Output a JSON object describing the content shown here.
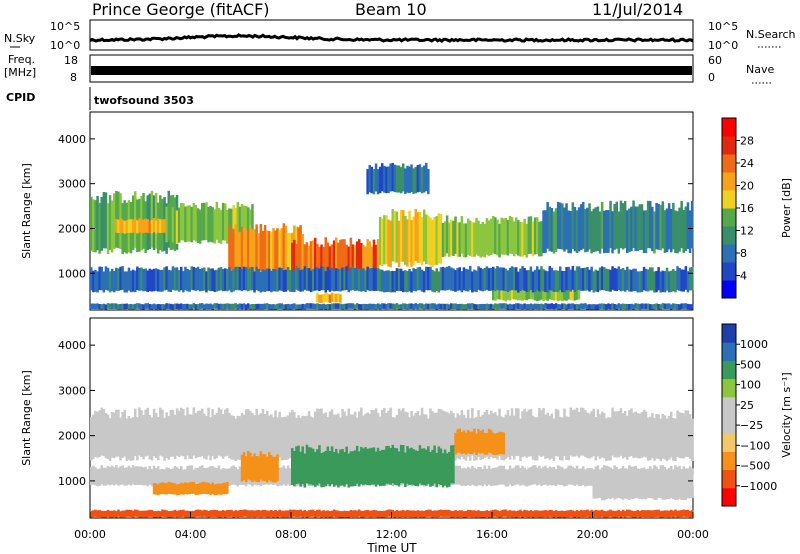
{
  "header": {
    "title": "Prince George (fitACF)",
    "beam": "Beam 10",
    "date": "11/Jul/2014"
  },
  "noise_panel": {
    "left_label": "N.Sky",
    "right_label": "N.Search",
    "left_ticks": [
      "10^5",
      "10^0"
    ],
    "right_ticks": [
      "10^5",
      "10^0"
    ]
  },
  "freq_panel": {
    "label_line1": "Freq.",
    "label_line2": "[MHz]",
    "right_label": "Nave",
    "left_ticks": [
      "18",
      "8"
    ],
    "right_ticks": [
      "60",
      "0"
    ]
  },
  "cpid_panel": {
    "label": "CPID",
    "value": "twofsound 3503"
  },
  "x_axis": {
    "label": "Time UT",
    "ticks": [
      "00:00",
      "04:00",
      "08:00",
      "12:00",
      "16:00",
      "20:00",
      "00:00"
    ]
  },
  "colors": {
    "power": [
      "#0000ff",
      "#1f47c6",
      "#2c6fb7",
      "#3a8f6a",
      "#55a84c",
      "#8cc63f",
      "#f0d020",
      "#f7a21b",
      "#f06b15",
      "#e02a10",
      "#ff0000"
    ],
    "velocity": [
      "#ff0000",
      "#f05010",
      "#f59018",
      "#f3c86b",
      "#c8c8c8",
      "#8cc63f",
      "#3a9a5a",
      "#2c6fb7",
      "#1d3fa8"
    ]
  },
  "chart_data": [
    {
      "type": "heatmap",
      "name": "power",
      "title": "",
      "xlabel": "",
      "ylabel": "Slant Range [km]",
      "y_ticks": [
        "1000",
        "2000",
        "3000",
        "4000"
      ],
      "ylim": [
        180,
        4600
      ],
      "xlim": [
        0,
        24
      ],
      "colorbar_label": "Power [dB]",
      "colorbar_ticks": [
        "4",
        "8",
        "12",
        "16",
        "20",
        "24",
        "28"
      ],
      "colorbar_range": [
        0,
        30
      ],
      "regions": [
        {
          "x0": 0.0,
          "x1": 24.0,
          "y0": 200,
          "y1": 320,
          "level": 6
        },
        {
          "x0": 0.0,
          "x1": 3.5,
          "y0": 1500,
          "y1": 2700,
          "level": 12
        },
        {
          "x0": 1.0,
          "x1": 3.0,
          "y0": 1900,
          "y1": 2200,
          "level": 20
        },
        {
          "x0": 3.0,
          "x1": 6.5,
          "y0": 1700,
          "y1": 2500,
          "level": 14
        },
        {
          "x0": 5.5,
          "x1": 8.5,
          "y0": 1000,
          "y1": 2000,
          "level": 22
        },
        {
          "x0": 8.0,
          "x1": 11.5,
          "y0": 800,
          "y1": 1700,
          "level": 24
        },
        {
          "x0": 9.0,
          "x1": 10.0,
          "y0": 350,
          "y1": 550,
          "level": 20
        },
        {
          "x0": 11.5,
          "x1": 14.0,
          "y0": 1200,
          "y1": 2300,
          "level": 18
        },
        {
          "x0": 14.0,
          "x1": 18.0,
          "y0": 1400,
          "y1": 2200,
          "level": 14
        },
        {
          "x0": 16.0,
          "x1": 19.5,
          "y0": 400,
          "y1": 800,
          "level": 14
        },
        {
          "x0": 18.0,
          "x1": 24.0,
          "y0": 1500,
          "y1": 2500,
          "level": 8
        },
        {
          "x0": 11.0,
          "x1": 13.5,
          "y0": 2800,
          "y1": 3400,
          "level": 6
        },
        {
          "x0": 0.0,
          "x1": 24.0,
          "y0": 600,
          "y1": 1100,
          "level": 6
        }
      ]
    },
    {
      "type": "heatmap",
      "name": "velocity",
      "title": "",
      "xlabel": "Time UT",
      "ylabel": "Slant Range [km]",
      "y_ticks": [
        "1000",
        "2000",
        "3000",
        "4000"
      ],
      "ylim": [
        180,
        4600
      ],
      "xlim": [
        0,
        24
      ],
      "colorbar_label": "Velocity [m s⁻¹]",
      "colorbar_ticks": [
        "1000",
        "500",
        "100",
        "25",
        "−25",
        "−100",
        "−500",
        "−1000"
      ],
      "regions": [
        {
          "x0": 0.0,
          "x1": 24.0,
          "y0": 1500,
          "y1": 2500,
          "level": 0
        },
        {
          "x0": 0.0,
          "x1": 24.0,
          "y0": 900,
          "y1": 1300,
          "level": 0
        },
        {
          "x0": 2.5,
          "x1": 5.5,
          "y0": 700,
          "y1": 950,
          "level": -150
        },
        {
          "x0": 6.0,
          "x1": 7.5,
          "y0": 1000,
          "y1": 1600,
          "level": -300
        },
        {
          "x0": 8.0,
          "x1": 14.5,
          "y0": 900,
          "y1": 1700,
          "level": 300
        },
        {
          "x0": 14.5,
          "x1": 16.5,
          "y0": 1600,
          "y1": 2100,
          "level": -150
        },
        {
          "x0": 20.0,
          "x1": 24.0,
          "y0": 600,
          "y1": 1100,
          "level": 0
        },
        {
          "x0": 0.0,
          "x1": 24.0,
          "y0": 200,
          "y1": 350,
          "level": -600
        }
      ]
    }
  ]
}
